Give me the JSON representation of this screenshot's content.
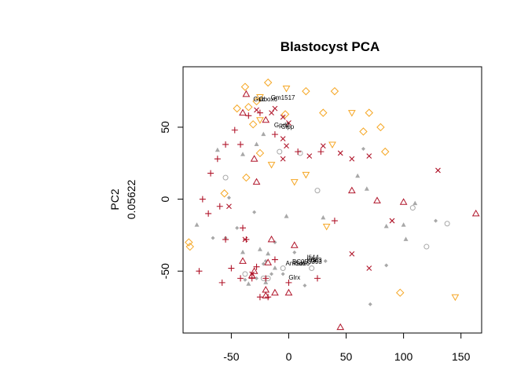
{
  "chart_data": {
    "type": "scatter",
    "title": "Blastocyst PCA",
    "xlabel": "",
    "ylabel_lines": [
      "PC2",
      "0.05622"
    ],
    "xlim": [
      -92,
      168
    ],
    "ylim": [
      -93,
      92
    ],
    "xticks": [
      -50,
      0,
      50,
      100,
      150
    ],
    "yticks": [
      -50,
      0,
      50
    ],
    "grid": false,
    "legend": "none",
    "colors": {
      "grey": "#a8a8a8",
      "orange": "#f5a623",
      "red": "#b0152a",
      "annotation": "#000000"
    },
    "series": [
      {
        "marker": "triangle",
        "color": "grey",
        "points": [
          [
            -28,
            38
          ],
          [
            -22,
            45
          ],
          [
            -40,
            31
          ],
          [
            -62,
            34
          ],
          [
            -80,
            -18
          ],
          [
            -40,
            -37
          ],
          [
            -25,
            -35
          ],
          [
            -2,
            -12
          ],
          [
            60,
            16
          ],
          [
            85,
            -19
          ],
          [
            30,
            -13
          ],
          [
            -12,
            -48
          ],
          [
            68,
            7
          ],
          [
            110,
            -3
          ],
          [
            100,
            -18
          ],
          [
            102,
            -28
          ],
          [
            -18,
            -38
          ],
          [
            -35,
            -59
          ],
          [
            -20,
            -58
          ]
        ]
      },
      {
        "marker": "diamond_small",
        "color": "grey",
        "points": [
          [
            -45,
            -20
          ],
          [
            -52,
            1
          ],
          [
            -30,
            -9
          ],
          [
            -20,
            -43
          ],
          [
            -12,
            -30
          ],
          [
            -5,
            -52
          ],
          [
            5,
            -37
          ],
          [
            14,
            -60
          ],
          [
            32,
            -43
          ],
          [
            -55,
            -27
          ],
          [
            -66,
            -27
          ],
          [
            -38,
            -56
          ],
          [
            -28,
            -55
          ],
          [
            -15,
            -52
          ],
          [
            -22,
            -45
          ],
          [
            85,
            -46
          ],
          [
            128,
            -15
          ],
          [
            65,
            35
          ],
          [
            71,
            -73
          ]
        ]
      },
      {
        "marker": "circle",
        "color": "grey",
        "points": [
          [
            -55,
            15
          ],
          [
            -8,
            33
          ],
          [
            10,
            32
          ],
          [
            -38,
            -52
          ],
          [
            -18,
            -55
          ],
          [
            -22,
            -55
          ],
          [
            -5,
            -48
          ],
          [
            25,
            6
          ],
          [
            108,
            -6
          ],
          [
            138,
            -17
          ],
          [
            120,
            -33
          ],
          [
            20,
            -48
          ]
        ]
      },
      {
        "marker": "diamond",
        "color": "orange",
        "points": [
          [
            -38,
            78
          ],
          [
            -18,
            81
          ],
          [
            -45,
            63
          ],
          [
            -35,
            64
          ],
          [
            -28,
            68
          ],
          [
            -31,
            52
          ],
          [
            -3,
            59
          ],
          [
            15,
            75
          ],
          [
            40,
            75
          ],
          [
            30,
            60
          ],
          [
            70,
            60
          ],
          [
            65,
            47
          ],
          [
            80,
            50
          ],
          [
            84,
            33
          ],
          [
            -25,
            32
          ],
          [
            -37,
            15
          ],
          [
            -56,
            4
          ],
          [
            -87,
            -30
          ],
          [
            -86,
            -33
          ],
          [
            97,
            -65
          ]
        ]
      },
      {
        "marker": "triangle_down",
        "color": "orange",
        "points": [
          [
            -2,
            77
          ],
          [
            -25,
            71
          ],
          [
            -25,
            55
          ],
          [
            55,
            60
          ],
          [
            38,
            38
          ],
          [
            -15,
            24
          ],
          [
            5,
            12
          ],
          [
            15,
            17
          ],
          [
            33,
            -19
          ],
          [
            145,
            -68
          ]
        ]
      },
      {
        "marker": "triangle_up",
        "color": "red",
        "points": [
          [
            -37,
            73
          ],
          [
            -40,
            60
          ],
          [
            -20,
            55
          ],
          [
            -30,
            28
          ],
          [
            -28,
            12
          ],
          [
            -15,
            -28
          ],
          [
            -40,
            -43
          ],
          [
            -32,
            -53
          ],
          [
            -30,
            -50
          ],
          [
            -20,
            -63
          ],
          [
            -20,
            -67
          ],
          [
            -12,
            -65
          ],
          [
            0,
            -65
          ],
          [
            5,
            -32
          ],
          [
            -18,
            -44
          ],
          [
            55,
            6
          ],
          [
            77,
            -1
          ],
          [
            100,
            -2
          ],
          [
            163,
            -10
          ],
          [
            45,
            -89
          ]
        ]
      },
      {
        "marker": "plus",
        "color": "red",
        "points": [
          [
            -47,
            48
          ],
          [
            -35,
            58
          ],
          [
            -25,
            60
          ],
          [
            -12,
            45
          ],
          [
            -42,
            38
          ],
          [
            -62,
            28
          ],
          [
            -55,
            38
          ],
          [
            -68,
            18
          ],
          [
            -70,
            -10
          ],
          [
            -75,
            0
          ],
          [
            -60,
            -5
          ],
          [
            -55,
            -28
          ],
          [
            -50,
            -48
          ],
          [
            -42,
            -55
          ],
          [
            -37,
            -28
          ],
          [
            -40,
            -20
          ],
          [
            -32,
            -55
          ],
          [
            -25,
            -68
          ],
          [
            -18,
            -68
          ],
          [
            -20,
            -55
          ],
          [
            -28,
            -47
          ],
          [
            -12,
            -42
          ],
          [
            0,
            -58
          ],
          [
            -78,
            -50
          ],
          [
            -58,
            -58
          ],
          [
            8,
            33
          ],
          [
            28,
            33
          ],
          [
            40,
            -15
          ],
          [
            25,
            -55
          ]
        ]
      },
      {
        "marker": "cross",
        "color": "red",
        "points": [
          [
            -12,
            63
          ],
          [
            -5,
            57
          ],
          [
            -15,
            60
          ],
          [
            -28,
            62
          ],
          [
            0,
            53
          ],
          [
            -2,
            37
          ],
          [
            -5,
            42
          ],
          [
            -5,
            28
          ],
          [
            18,
            30
          ],
          [
            30,
            37
          ],
          [
            45,
            32
          ],
          [
            55,
            28
          ],
          [
            70,
            30
          ],
          [
            90,
            -15
          ],
          [
            130,
            20
          ],
          [
            55,
            -38
          ],
          [
            70,
            -48
          ],
          [
            -38,
            -28
          ],
          [
            -52,
            -5
          ],
          [
            -32,
            -52
          ]
        ]
      }
    ],
    "annotations": [
      {
        "text": "Gsc",
        "x": -26,
        "y": 68
      },
      {
        "text": "Obox6",
        "x": -18,
        "y": 68
      },
      {
        "text": "Gm1517",
        "x": -5,
        "y": 69
      },
      {
        "text": "Gpd2",
        "x": -6,
        "y": 50
      },
      {
        "text": "Clpp",
        "x": -1,
        "y": 49
      },
      {
        "text": "Ifi44",
        "x": 21,
        "y": -42
      },
      {
        "text": "Kdr",
        "x": 20,
        "y": -44
      },
      {
        "text": "Gli3",
        "x": 24,
        "y": -44
      },
      {
        "text": "Ankrd6",
        "x": 6,
        "y": -46
      },
      {
        "text": "Sox6",
        "x": 12,
        "y": -46
      },
      {
        "text": "BC053393",
        "x": 16,
        "y": -45
      },
      {
        "text": "Glrx",
        "x": 5,
        "y": -56
      }
    ]
  }
}
